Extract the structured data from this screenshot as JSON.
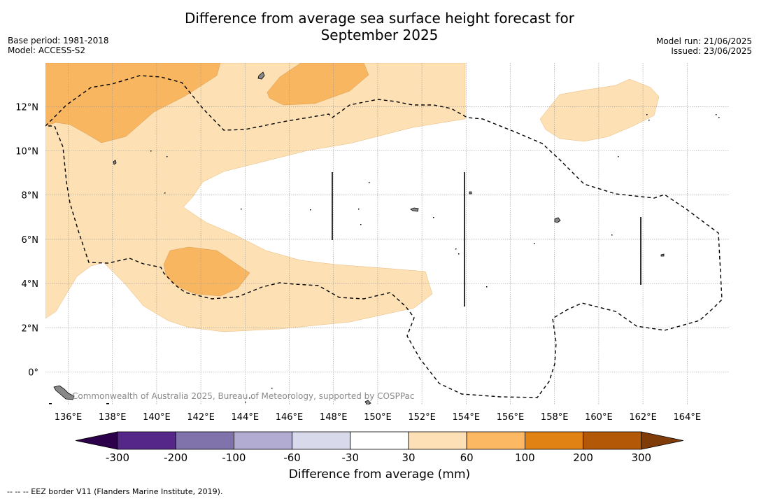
{
  "title": {
    "line1": "Difference from average sea surface height forecast for",
    "line2": "September 2025"
  },
  "meta_left": {
    "base_period": "Base period: 1981-2018",
    "model": "Model: ACCESS-S2"
  },
  "meta_right": {
    "model_run": "Model run: 21/06/2025",
    "issued": "Issued: 23/06/2025"
  },
  "map": {
    "lon_labels": [
      "136°E",
      "138°E",
      "140°E",
      "142°E",
      "144°E",
      "146°E",
      "148°E",
      "150°E",
      "152°E",
      "154°E",
      "156°E",
      "158°E",
      "160°E",
      "162°E",
      "164°E"
    ],
    "lat_labels": [
      "12°N",
      "10°N",
      "8°N",
      "6°N",
      "4°N",
      "2°N",
      "0°"
    ],
    "copyright": "Commonwealth of Australia 2025, Bureau of Meteorology, supported by COSPPac",
    "colors": {
      "anom_30_60": "#fde0b4",
      "anom_60_100": "#f9b660",
      "eez_line": "#000000",
      "grid": "#9a9a9a"
    }
  },
  "colorbar": {
    "tick_labels": [
      "-300",
      "-200",
      "-100",
      "-60",
      "-30",
      "30",
      "60",
      "100",
      "200",
      "300"
    ],
    "bins": [
      {
        "color": "#2d004b"
      },
      {
        "color": "#542788"
      },
      {
        "color": "#8073ac"
      },
      {
        "color": "#b2abd2"
      },
      {
        "color": "#d8daeb"
      },
      {
        "color": "#ffffff"
      },
      {
        "color": "#fee0b6"
      },
      {
        "color": "#fdb863"
      },
      {
        "color": "#e08214"
      },
      {
        "color": "#b35806"
      },
      {
        "color": "#7f3b08"
      }
    ],
    "title": "Difference from average (mm)"
  },
  "footnote": "--  --  -- EEZ border V11 (Flanders Marine Institute, 2019)."
}
